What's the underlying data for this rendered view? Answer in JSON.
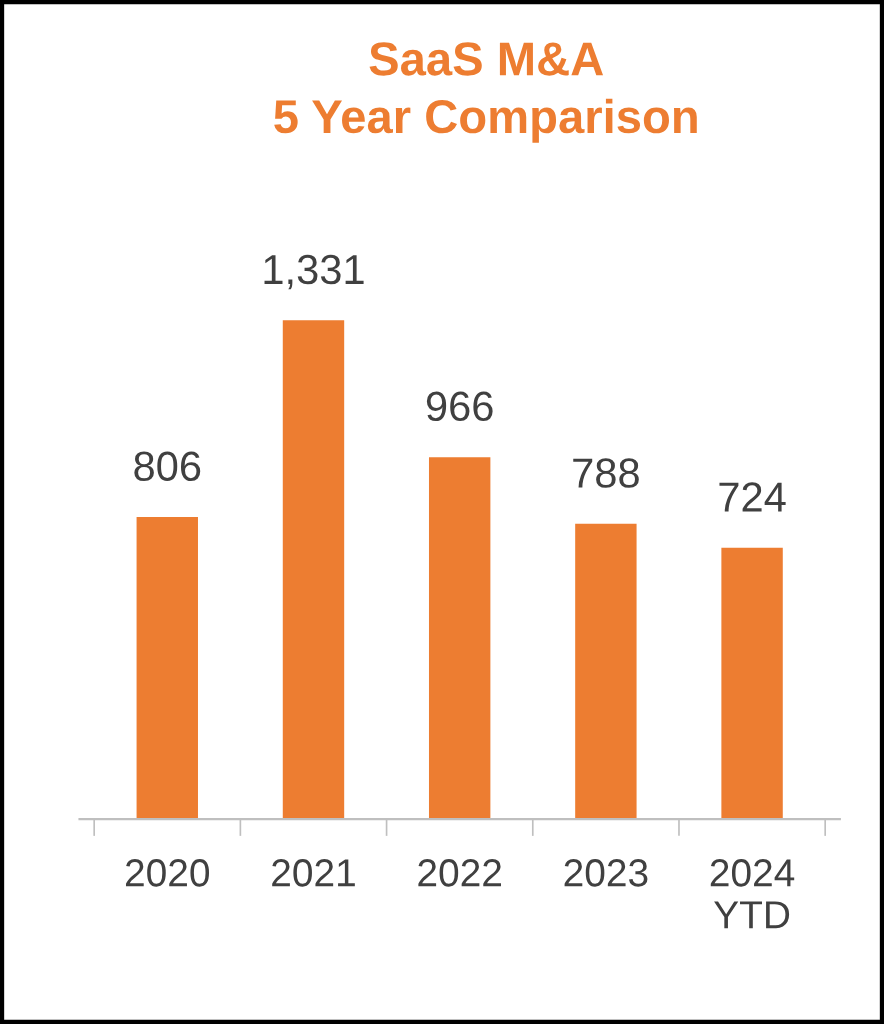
{
  "chart_data": {
    "type": "bar",
    "title": "SaaS M&A\n5 Year Comparison",
    "categories": [
      "2020",
      "2021",
      "2022",
      "2023",
      "2024\nYTD"
    ],
    "values": [
      806,
      1331,
      966,
      788,
      724
    ],
    "value_labels": [
      "806",
      "1,331",
      "966",
      "788",
      "724"
    ],
    "color": "#ed7d31"
  }
}
